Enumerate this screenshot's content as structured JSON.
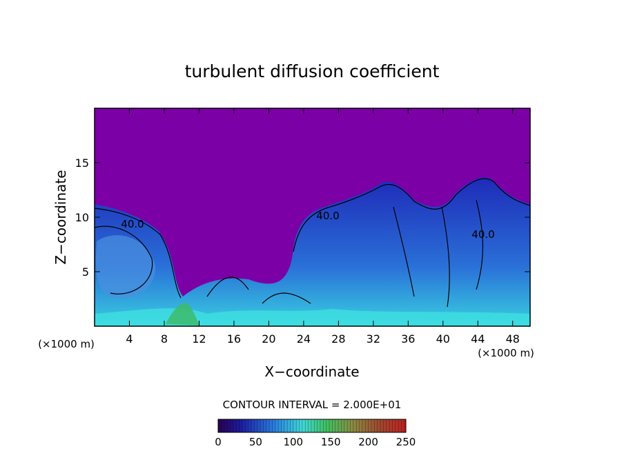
{
  "chart_data": {
    "type": "heatmap",
    "title": "turbulent diffusion coefficient",
    "xlabel": "X−coordinate",
    "ylabel": "Z−coordinate",
    "x_units_left": "(×1000 m)",
    "x_units_right": "(×1000 m)",
    "xlim": [
      0,
      50
    ],
    "ylim": [
      0,
      20
    ],
    "x_ticks": [
      4,
      8,
      12,
      16,
      20,
      24,
      28,
      32,
      36,
      40,
      44,
      48
    ],
    "y_ticks": [
      5,
      10,
      15
    ],
    "contour_interval_text": "CONTOUR INTERVAL = 2.000E+01",
    "contour_interval": 20,
    "contour_labels": [
      "40.0",
      "40.0",
      "40.0"
    ],
    "colorbar": {
      "min": 0,
      "max": 250,
      "ticks": [
        0,
        50,
        100,
        150,
        200,
        250
      ]
    },
    "colors": {
      "background_field": "#7b00a6",
      "low": "#1a1a8c",
      "mid": "#2f8de0",
      "high": "#3fe0e0",
      "green": "#3dbb6a"
    }
  }
}
